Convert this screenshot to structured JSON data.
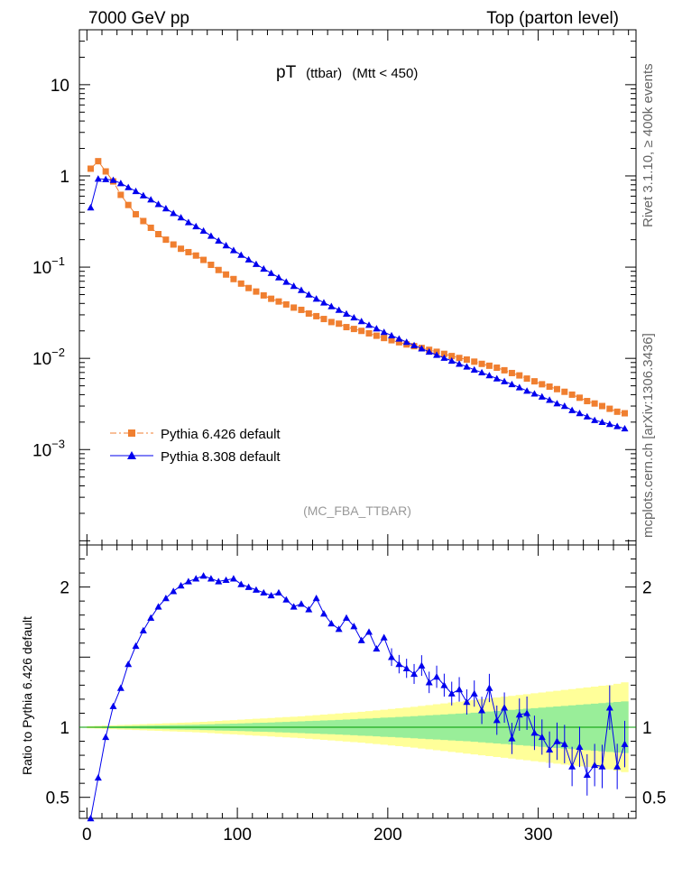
{
  "header": {
    "left": "7000 GeV pp",
    "right": "Top (parton level)"
  },
  "side_labels": {
    "top": "Rivet 3.1.10, ≥ 400k events",
    "bottom": "mcplots.cern.ch [arXiv:1306.3436]"
  },
  "chart_data": {
    "type": "scatter",
    "title_main": "pT",
    "title_sub": "(ttbar)",
    "title_cut": "(Mtt < 450)",
    "watermark": "(MC_FBA_TTBAR)",
    "xlim": [
      -5,
      365
    ],
    "ylim": [
      9e-05,
      40
    ],
    "yscale": "log",
    "x_ticks": [
      0,
      100,
      200,
      300
    ],
    "y_ticks": [
      {
        "value": 10,
        "label": "10"
      },
      {
        "value": 1,
        "label": "1"
      },
      {
        "value": 0.1,
        "base": "10",
        "exp": "−1"
      },
      {
        "value": 0.01,
        "base": "10",
        "exp": "−2"
      },
      {
        "value": 0.001,
        "base": "10",
        "exp": "−3"
      }
    ],
    "x": [
      2.5,
      7.5,
      12.5,
      17.5,
      22.5,
      27.5,
      32.5,
      37.5,
      42.5,
      47.5,
      52.5,
      57.5,
      62.5,
      67.5,
      72.5,
      77.5,
      82.5,
      87.5,
      92.5,
      97.5,
      102.5,
      107.5,
      112.5,
      117.5,
      122.5,
      127.5,
      132.5,
      137.5,
      142.5,
      147.5,
      152.5,
      157.5,
      162.5,
      167.5,
      172.5,
      177.5,
      182.5,
      187.5,
      192.5,
      197.5,
      202.5,
      207.5,
      212.5,
      217.5,
      222.5,
      227.5,
      232.5,
      237.5,
      242.5,
      247.5,
      252.5,
      257.5,
      262.5,
      267.5,
      272.5,
      277.5,
      282.5,
      287.5,
      292.5,
      297.5,
      302.5,
      307.5,
      312.5,
      317.5,
      322.5,
      327.5,
      332.5,
      337.5,
      342.5,
      347.5,
      352.5,
      357.5
    ],
    "series": [
      {
        "name": "Pythia 6.426 default",
        "color": "#f07f30",
        "marker": "square",
        "line": "dash-dot",
        "values": [
          1.2,
          1.45,
          1.12,
          0.87,
          0.62,
          0.48,
          0.38,
          0.32,
          0.27,
          0.23,
          0.2,
          0.177,
          0.159,
          0.146,
          0.134,
          0.12,
          0.106,
          0.093,
          0.083,
          0.074,
          0.066,
          0.059,
          0.054,
          0.049,
          0.045,
          0.042,
          0.039,
          0.036,
          0.034,
          0.031,
          0.029,
          0.027,
          0.025,
          0.024,
          0.022,
          0.021,
          0.02,
          0.0188,
          0.0177,
          0.0167,
          0.0158,
          0.015,
          0.0142,
          0.0136,
          0.013,
          0.0124,
          0.0118,
          0.0112,
          0.0106,
          0.0101,
          0.0097,
          0.0092,
          0.0087,
          0.0083,
          0.0079,
          0.0074,
          0.0069,
          0.0065,
          0.006,
          0.0056,
          0.0052,
          0.0049,
          0.0046,
          0.0043,
          0.004,
          0.0037,
          0.0034,
          0.0032,
          0.003,
          0.0028,
          0.0026,
          0.0025
        ]
      },
      {
        "name": "Pythia 8.308 default",
        "color": "#0000ee",
        "marker": "triangle",
        "line": "solid",
        "values": [
          0.45,
          0.93,
          0.92,
          0.9,
          0.83,
          0.75,
          0.68,
          0.61,
          0.55,
          0.49,
          0.44,
          0.39,
          0.35,
          0.31,
          0.28,
          0.25,
          0.22,
          0.195,
          0.173,
          0.153,
          0.136,
          0.121,
          0.108,
          0.096,
          0.086,
          0.077,
          0.069,
          0.062,
          0.056,
          0.05,
          0.045,
          0.0408,
          0.0372,
          0.0339,
          0.0308,
          0.028,
          0.0255,
          0.0232,
          0.0212,
          0.0194,
          0.0178,
          0.0164,
          0.0151,
          0.0139,
          0.0128,
          0.0118,
          0.0109,
          0.0101,
          0.0094,
          0.0087,
          0.0081,
          0.0075,
          0.007,
          0.0065,
          0.006,
          0.0056,
          0.0052,
          0.0048,
          0.0044,
          0.0041,
          0.0038,
          0.0035,
          0.0032,
          0.003,
          0.0027,
          0.0025,
          0.0023,
          0.0021,
          0.002,
          0.0019,
          0.0018,
          0.0017
        ]
      }
    ],
    "ratio": {
      "ylabel": "Ratio to Pythia 6.426 default",
      "ylim": [
        0.35,
        2.3
      ],
      "y_ticks": [
        {
          "value": 0.5,
          "label": "0.5"
        },
        {
          "value": 1,
          "label": "1"
        },
        {
          "value": 2,
          "label": "2"
        }
      ],
      "values": [
        0.35,
        0.64,
        0.93,
        1.15,
        1.28,
        1.45,
        1.58,
        1.69,
        1.78,
        1.86,
        1.92,
        1.97,
        2.01,
        2.04,
        2.06,
        2.08,
        2.06,
        2.04,
        2.05,
        2.06,
        2.02,
        2.0,
        1.98,
        1.96,
        1.94,
        1.96,
        1.91,
        1.86,
        1.88,
        1.84,
        1.92,
        1.81,
        1.74,
        1.7,
        1.78,
        1.72,
        1.62,
        1.68,
        1.56,
        1.64,
        1.5,
        1.45,
        1.42,
        1.38,
        1.44,
        1.32,
        1.36,
        1.3,
        1.24,
        1.27,
        1.18,
        1.24,
        1.12,
        1.28,
        1.05,
        1.14,
        0.92,
        1.09,
        1.1,
        0.96,
        0.93,
        0.84,
        0.9,
        0.88,
        0.72,
        0.86,
        0.66,
        0.73,
        0.72,
        1.14,
        0.72,
        0.88
      ],
      "band_inner": [
        0.004,
        0.005,
        0.006,
        0.007,
        0.008,
        0.009,
        0.01,
        0.011,
        0.012,
        0.013,
        0.014,
        0.015,
        0.016,
        0.017,
        0.018,
        0.02,
        0.021,
        0.023,
        0.024,
        0.026,
        0.027,
        0.029,
        0.031,
        0.032,
        0.034,
        0.036,
        0.038,
        0.04,
        0.042,
        0.044,
        0.046,
        0.048,
        0.05,
        0.052,
        0.055,
        0.057,
        0.06,
        0.062,
        0.065,
        0.068,
        0.07,
        0.073,
        0.076,
        0.079,
        0.082,
        0.085,
        0.088,
        0.091,
        0.094,
        0.097,
        0.1,
        0.104,
        0.108,
        0.112,
        0.116,
        0.12,
        0.124,
        0.128,
        0.132,
        0.136,
        0.14,
        0.144,
        0.148,
        0.152,
        0.156,
        0.16,
        0.164,
        0.168,
        0.172,
        0.176,
        0.18,
        0.184
      ],
      "band_outer": [
        0.008,
        0.01,
        0.012,
        0.014,
        0.016,
        0.018,
        0.02,
        0.022,
        0.024,
        0.026,
        0.028,
        0.03,
        0.032,
        0.034,
        0.036,
        0.039,
        0.042,
        0.045,
        0.048,
        0.051,
        0.054,
        0.057,
        0.06,
        0.063,
        0.066,
        0.069,
        0.072,
        0.075,
        0.078,
        0.082,
        0.086,
        0.09,
        0.094,
        0.098,
        0.102,
        0.106,
        0.11,
        0.115,
        0.12,
        0.125,
        0.13,
        0.135,
        0.14,
        0.146,
        0.152,
        0.158,
        0.164,
        0.17,
        0.176,
        0.182,
        0.188,
        0.194,
        0.2,
        0.206,
        0.212,
        0.218,
        0.224,
        0.23,
        0.236,
        0.242,
        0.248,
        0.254,
        0.26,
        0.266,
        0.272,
        0.278,
        0.284,
        0.29,
        0.296,
        0.3,
        0.31,
        0.32
      ]
    }
  }
}
